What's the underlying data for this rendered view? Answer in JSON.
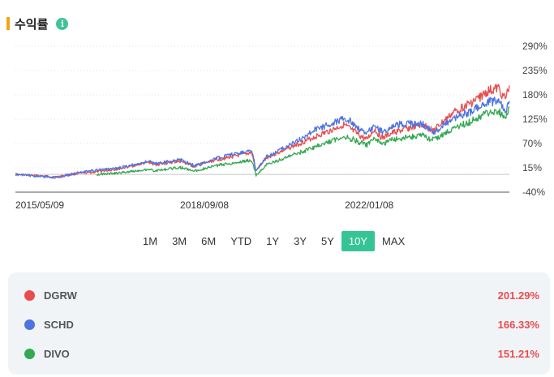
{
  "header": {
    "title": "수익률",
    "info_icon": "info-icon"
  },
  "chart_data": {
    "type": "line",
    "y_ticks": [
      "290%",
      "235%",
      "180%",
      "125%",
      "70%",
      "15%",
      "-40%"
    ],
    "y_tick_values": [
      290,
      235,
      180,
      125,
      70,
      15,
      -40
    ],
    "ylim": [
      -40,
      290
    ],
    "x_tick_labels": [
      "2015/05/09",
      "2018/09/08",
      "2022/01/08"
    ],
    "x_range": [
      "2015/05/09",
      "2025/05/09"
    ],
    "grid": "horizontal-dotted",
    "baseline": 0,
    "series": [
      {
        "name": "DGRW",
        "color": "#e84c4c",
        "points": [
          [
            "2015/05/09",
            0
          ],
          [
            "2015/12/15",
            -4
          ],
          [
            "2016/03/01",
            -6
          ],
          [
            "2016/08/01",
            2
          ],
          [
            "2016/12/01",
            5
          ],
          [
            "2017/06/01",
            12
          ],
          [
            "2018/01/25",
            28
          ],
          [
            "2018/03/01",
            22
          ],
          [
            "2018/09/08",
            30
          ],
          [
            "2018/12/24",
            18
          ],
          [
            "2019/06/01",
            33
          ],
          [
            "2019/12/31",
            46
          ],
          [
            "2020/02/19",
            50
          ],
          [
            "2020/03/23",
            8
          ],
          [
            "2020/06/08",
            38
          ],
          [
            "2020/12/31",
            65
          ],
          [
            "2021/06/01",
            85
          ],
          [
            "2021/12/31",
            112
          ],
          [
            "2022/03/01",
            100
          ],
          [
            "2022/06/16",
            78
          ],
          [
            "2022/08/16",
            102
          ],
          [
            "2022/10/12",
            82
          ],
          [
            "2023/01/01",
            95
          ],
          [
            "2023/07/31",
            112
          ],
          [
            "2023/10/27",
            100
          ],
          [
            "2024/03/28",
            142
          ],
          [
            "2024/07/16",
            160
          ],
          [
            "2024/09/01",
            168
          ],
          [
            "2024/12/01",
            188
          ],
          [
            "2025/02/18",
            195
          ],
          [
            "2025/04/08",
            170
          ],
          [
            "2025/05/09",
            201.29
          ]
        ]
      },
      {
        "name": "SCHD",
        "color": "#4e74e0",
        "points": [
          [
            "2015/05/09",
            0
          ],
          [
            "2015/12/15",
            -5
          ],
          [
            "2016/03/01",
            -7
          ],
          [
            "2016/08/01",
            3
          ],
          [
            "2016/12/01",
            9
          ],
          [
            "2017/06/01",
            14
          ],
          [
            "2018/01/25",
            30
          ],
          [
            "2018/03/01",
            24
          ],
          [
            "2018/09/08",
            33
          ],
          [
            "2018/12/24",
            20
          ],
          [
            "2019/06/01",
            36
          ],
          [
            "2019/12/31",
            52
          ],
          [
            "2020/02/19",
            54
          ],
          [
            "2020/03/23",
            10
          ],
          [
            "2020/06/08",
            40
          ],
          [
            "2020/12/31",
            72
          ],
          [
            "2021/06/01",
            100
          ],
          [
            "2021/12/31",
            126
          ],
          [
            "2022/03/01",
            118
          ],
          [
            "2022/06/16",
            90
          ],
          [
            "2022/08/16",
            112
          ],
          [
            "2022/10/12",
            95
          ],
          [
            "2023/01/01",
            112
          ],
          [
            "2023/07/31",
            115
          ],
          [
            "2023/10/27",
            96
          ],
          [
            "2024/03/28",
            128
          ],
          [
            "2024/07/16",
            140
          ],
          [
            "2024/09/01",
            148
          ],
          [
            "2024/12/01",
            162
          ],
          [
            "2025/02/18",
            168
          ],
          [
            "2025/04/08",
            140
          ],
          [
            "2025/05/09",
            166.33
          ]
        ]
      },
      {
        "name": "DIVO",
        "color": "#34a853",
        "points": [
          [
            "2016/12/28",
            0
          ],
          [
            "2017/06/01",
            3
          ],
          [
            "2018/01/25",
            12
          ],
          [
            "2018/03/01",
            8
          ],
          [
            "2018/09/08",
            16
          ],
          [
            "2018/12/24",
            8
          ],
          [
            "2019/06/01",
            20
          ],
          [
            "2019/12/31",
            30
          ],
          [
            "2020/02/19",
            32
          ],
          [
            "2020/03/23",
            -2
          ],
          [
            "2020/06/08",
            22
          ],
          [
            "2020/12/31",
            45
          ],
          [
            "2021/06/01",
            62
          ],
          [
            "2021/12/31",
            86
          ],
          [
            "2022/03/01",
            80
          ],
          [
            "2022/06/16",
            66
          ],
          [
            "2022/08/16",
            80
          ],
          [
            "2022/10/12",
            68
          ],
          [
            "2023/01/01",
            80
          ],
          [
            "2023/07/31",
            88
          ],
          [
            "2023/10/27",
            78
          ],
          [
            "2024/03/28",
            105
          ],
          [
            "2024/07/16",
            118
          ],
          [
            "2024/09/01",
            125
          ],
          [
            "2024/12/01",
            140
          ],
          [
            "2025/02/18",
            145
          ],
          [
            "2025/04/08",
            120
          ],
          [
            "2025/05/09",
            151.21
          ]
        ]
      }
    ]
  },
  "ranges": [
    {
      "label": "1M",
      "active": false
    },
    {
      "label": "3M",
      "active": false
    },
    {
      "label": "6M",
      "active": false
    },
    {
      "label": "YTD",
      "active": false
    },
    {
      "label": "1Y",
      "active": false
    },
    {
      "label": "3Y",
      "active": false
    },
    {
      "label": "5Y",
      "active": false
    },
    {
      "label": "10Y",
      "active": true
    },
    {
      "label": "MAX",
      "active": false
    }
  ],
  "legend": [
    {
      "name": "DGRW",
      "value": "201.29%",
      "color": "#e84c4c"
    },
    {
      "name": "SCHD",
      "value": "166.33%",
      "color": "#4e74e0"
    },
    {
      "name": "DIVO",
      "value": "151.21%",
      "color": "#34a853"
    }
  ]
}
